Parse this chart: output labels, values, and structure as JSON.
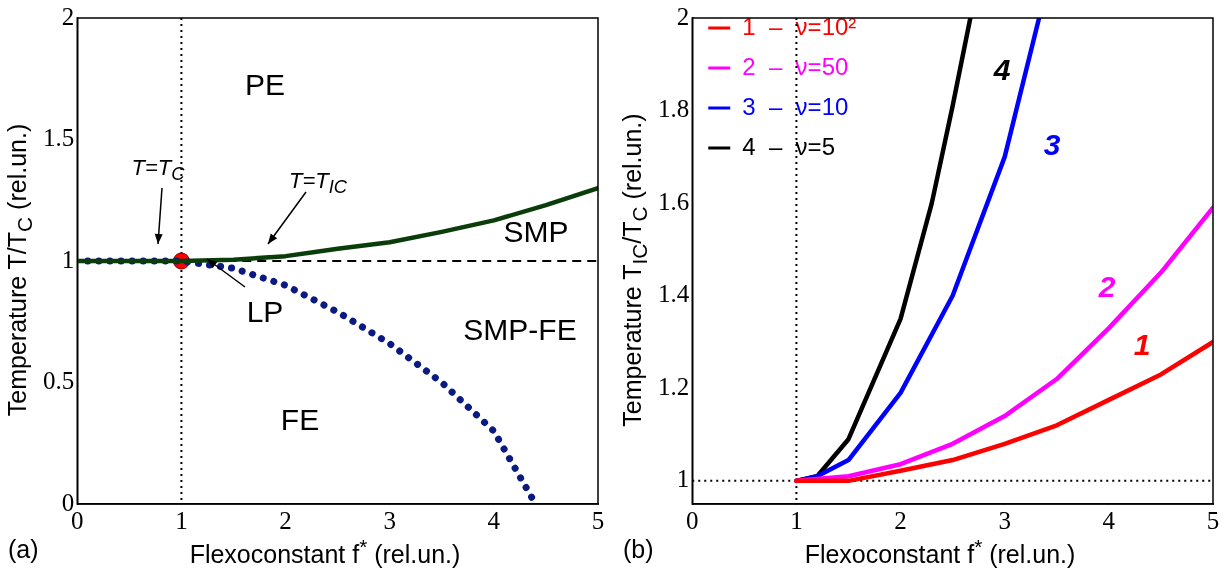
{
  "chart_data": [
    {
      "type": "line",
      "xlabel": "Flexoconstant  f$^{*}$ (rel.un.)",
      "ylabel": "Temperature  T/T$_{C}$ (rel.un.)",
      "xlim": [
        0,
        5
      ],
      "xticks": [
        0,
        1,
        2,
        3,
        4,
        5
      ],
      "ylim": [
        0,
        2
      ],
      "yticks": [
        0,
        0.5,
        1,
        1.5,
        2
      ],
      "grid": false,
      "legend": false,
      "series": [
        {
          "color": "#0b3d0b",
          "line_style": "solid",
          "x": [
            0,
            0.5,
            1,
            1.5,
            2,
            2.5,
            3,
            3.5,
            4,
            4.5,
            5
          ],
          "values": [
            1,
            1,
            1,
            1.005,
            1.02,
            1.05,
            1.077,
            1.12,
            1.167,
            1.23,
            1.3
          ]
        },
        {
          "color": "#0a1a80",
          "line_style": "dotted",
          "x": [
            0.1,
            0.5,
            1,
            1.5,
            2,
            2.5,
            3,
            3.5,
            4,
            4.4
          ],
          "values": [
            1,
            1,
            1,
            0.97,
            0.9,
            0.79,
            0.66,
            0.5,
            0.3,
            0
          ]
        },
        {
          "type": "scatter",
          "color": "#ff0000",
          "marker": "circle",
          "x": [
            1
          ],
          "values": [
            1
          ]
        }
      ],
      "ref_lines": [
        {
          "axis": "y",
          "value": 1,
          "color": "#000000",
          "line_style": "dashed"
        },
        {
          "axis": "x",
          "value": 1,
          "color": "#000000",
          "line_style": "dotted"
        }
      ],
      "annotations": [
        "PE",
        "SMP",
        "SMP-FE",
        "FE",
        "LP",
        "T=T$_{C}$",
        "T=T$_{IC}$",
        "(a)"
      ]
    },
    {
      "type": "line",
      "xlabel": "Flexoconstant  f$^{*}$ (rel.un.)",
      "ylabel": "Temperature  T$_{IC}$/T$_{C}$ (rel.un.)",
      "xlim": [
        0,
        5
      ],
      "xticks": [
        0,
        1,
        2,
        3,
        4,
        5
      ],
      "ylim": [
        0.95,
        2
      ],
      "yticks": [
        1,
        1.2,
        1.4,
        1.6,
        1.8,
        2
      ],
      "grid": false,
      "legend": "top left",
      "series": [
        {
          "name": "1  –  ν=10²",
          "color": "#ff0000",
          "line_style": "solid",
          "x": [
            1,
            1.5,
            2,
            2.5,
            3,
            3.5,
            4,
            4.5,
            5
          ],
          "values": [
            1,
            1,
            1.022,
            1.045,
            1.08,
            1.12,
            1.175,
            1.23,
            1.3
          ]
        },
        {
          "name": "2  –  ν=50",
          "color": "#ff00ff",
          "line_style": "solid",
          "x": [
            1,
            1.5,
            2,
            2.5,
            3,
            3.5,
            4,
            4.5,
            5
          ],
          "values": [
            1,
            1.01,
            1.036,
            1.08,
            1.14,
            1.22,
            1.33,
            1.45,
            1.59
          ]
        },
        {
          "name": "3  –  ν=10",
          "color": "#0000ff",
          "line_style": "solid",
          "x": [
            1,
            1.2,
            1.5,
            2,
            2.5,
            3,
            3.33
          ],
          "values": [
            1,
            1.01,
            1.045,
            1.19,
            1.4,
            1.7,
            2
          ]
        },
        {
          "name": "4  –  ν=5",
          "color": "#000000",
          "line_style": "solid",
          "x": [
            1,
            1.2,
            1.5,
            2,
            2.3,
            2.5,
            2.67
          ],
          "values": [
            1,
            1.01,
            1.09,
            1.35,
            1.6,
            1.81,
            2
          ]
        }
      ],
      "ref_lines": [
        {
          "axis": "y",
          "value": 1,
          "color": "#000000",
          "line_style": "dotted"
        },
        {
          "axis": "x",
          "value": 1,
          "color": "#000000",
          "line_style": "dotted"
        }
      ],
      "annotations": [
        "1",
        "2",
        "3",
        "4",
        "(b)"
      ]
    }
  ]
}
